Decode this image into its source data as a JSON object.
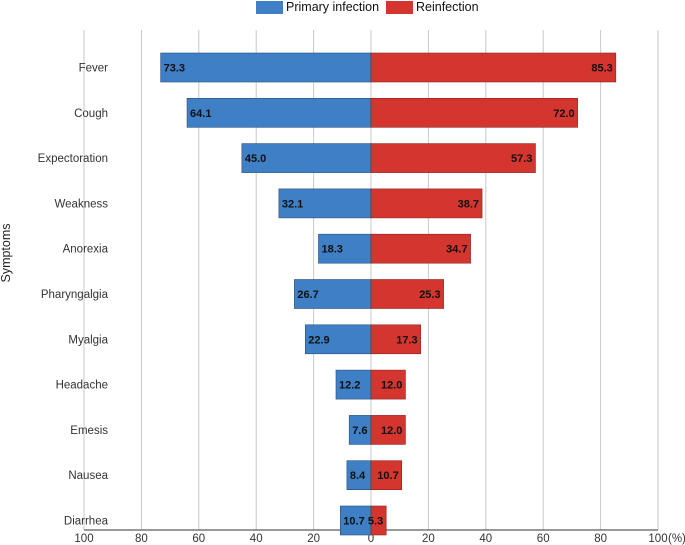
{
  "chart_data": {
    "type": "bar",
    "orientation": "horizontal-diverging",
    "ylabel": "Symptoms",
    "x_unit_label": "(%)",
    "x_ticks": [
      100,
      80,
      60,
      40,
      20,
      0,
      20,
      40,
      60,
      80,
      100
    ],
    "xlim": [
      -100,
      100
    ],
    "categories": [
      "Fever",
      "Cough",
      "Expectoration",
      "Weakness",
      "Anorexia",
      "Pharyngalgia",
      "Myalgia",
      "Headache",
      "Emesis",
      "Nausea",
      "Diarrhea"
    ],
    "series": [
      {
        "name": "Primary infection",
        "color": "#3f7fc5",
        "side": "left",
        "values": [
          73.3,
          64.1,
          45.0,
          32.1,
          18.3,
          26.7,
          22.9,
          12.2,
          7.6,
          8.4,
          10.7
        ],
        "labels": [
          "73.3",
          "64.1",
          "45.0",
          "32.1",
          "18.3",
          "26.7",
          "22.9",
          "12.2",
          "7.6",
          "8.4",
          "10.7"
        ]
      },
      {
        "name": "Reinfection",
        "color": "#d4352f",
        "side": "right",
        "values": [
          85.3,
          72.0,
          57.3,
          38.7,
          34.7,
          25.3,
          17.3,
          12.0,
          12.0,
          10.7,
          5.3
        ],
        "labels": [
          "85.3",
          "72.0",
          "57.3",
          "38.7",
          "34.7",
          "25.3",
          "17.3",
          "12.0",
          "12.0",
          "10.7",
          "5.3"
        ]
      }
    ]
  }
}
